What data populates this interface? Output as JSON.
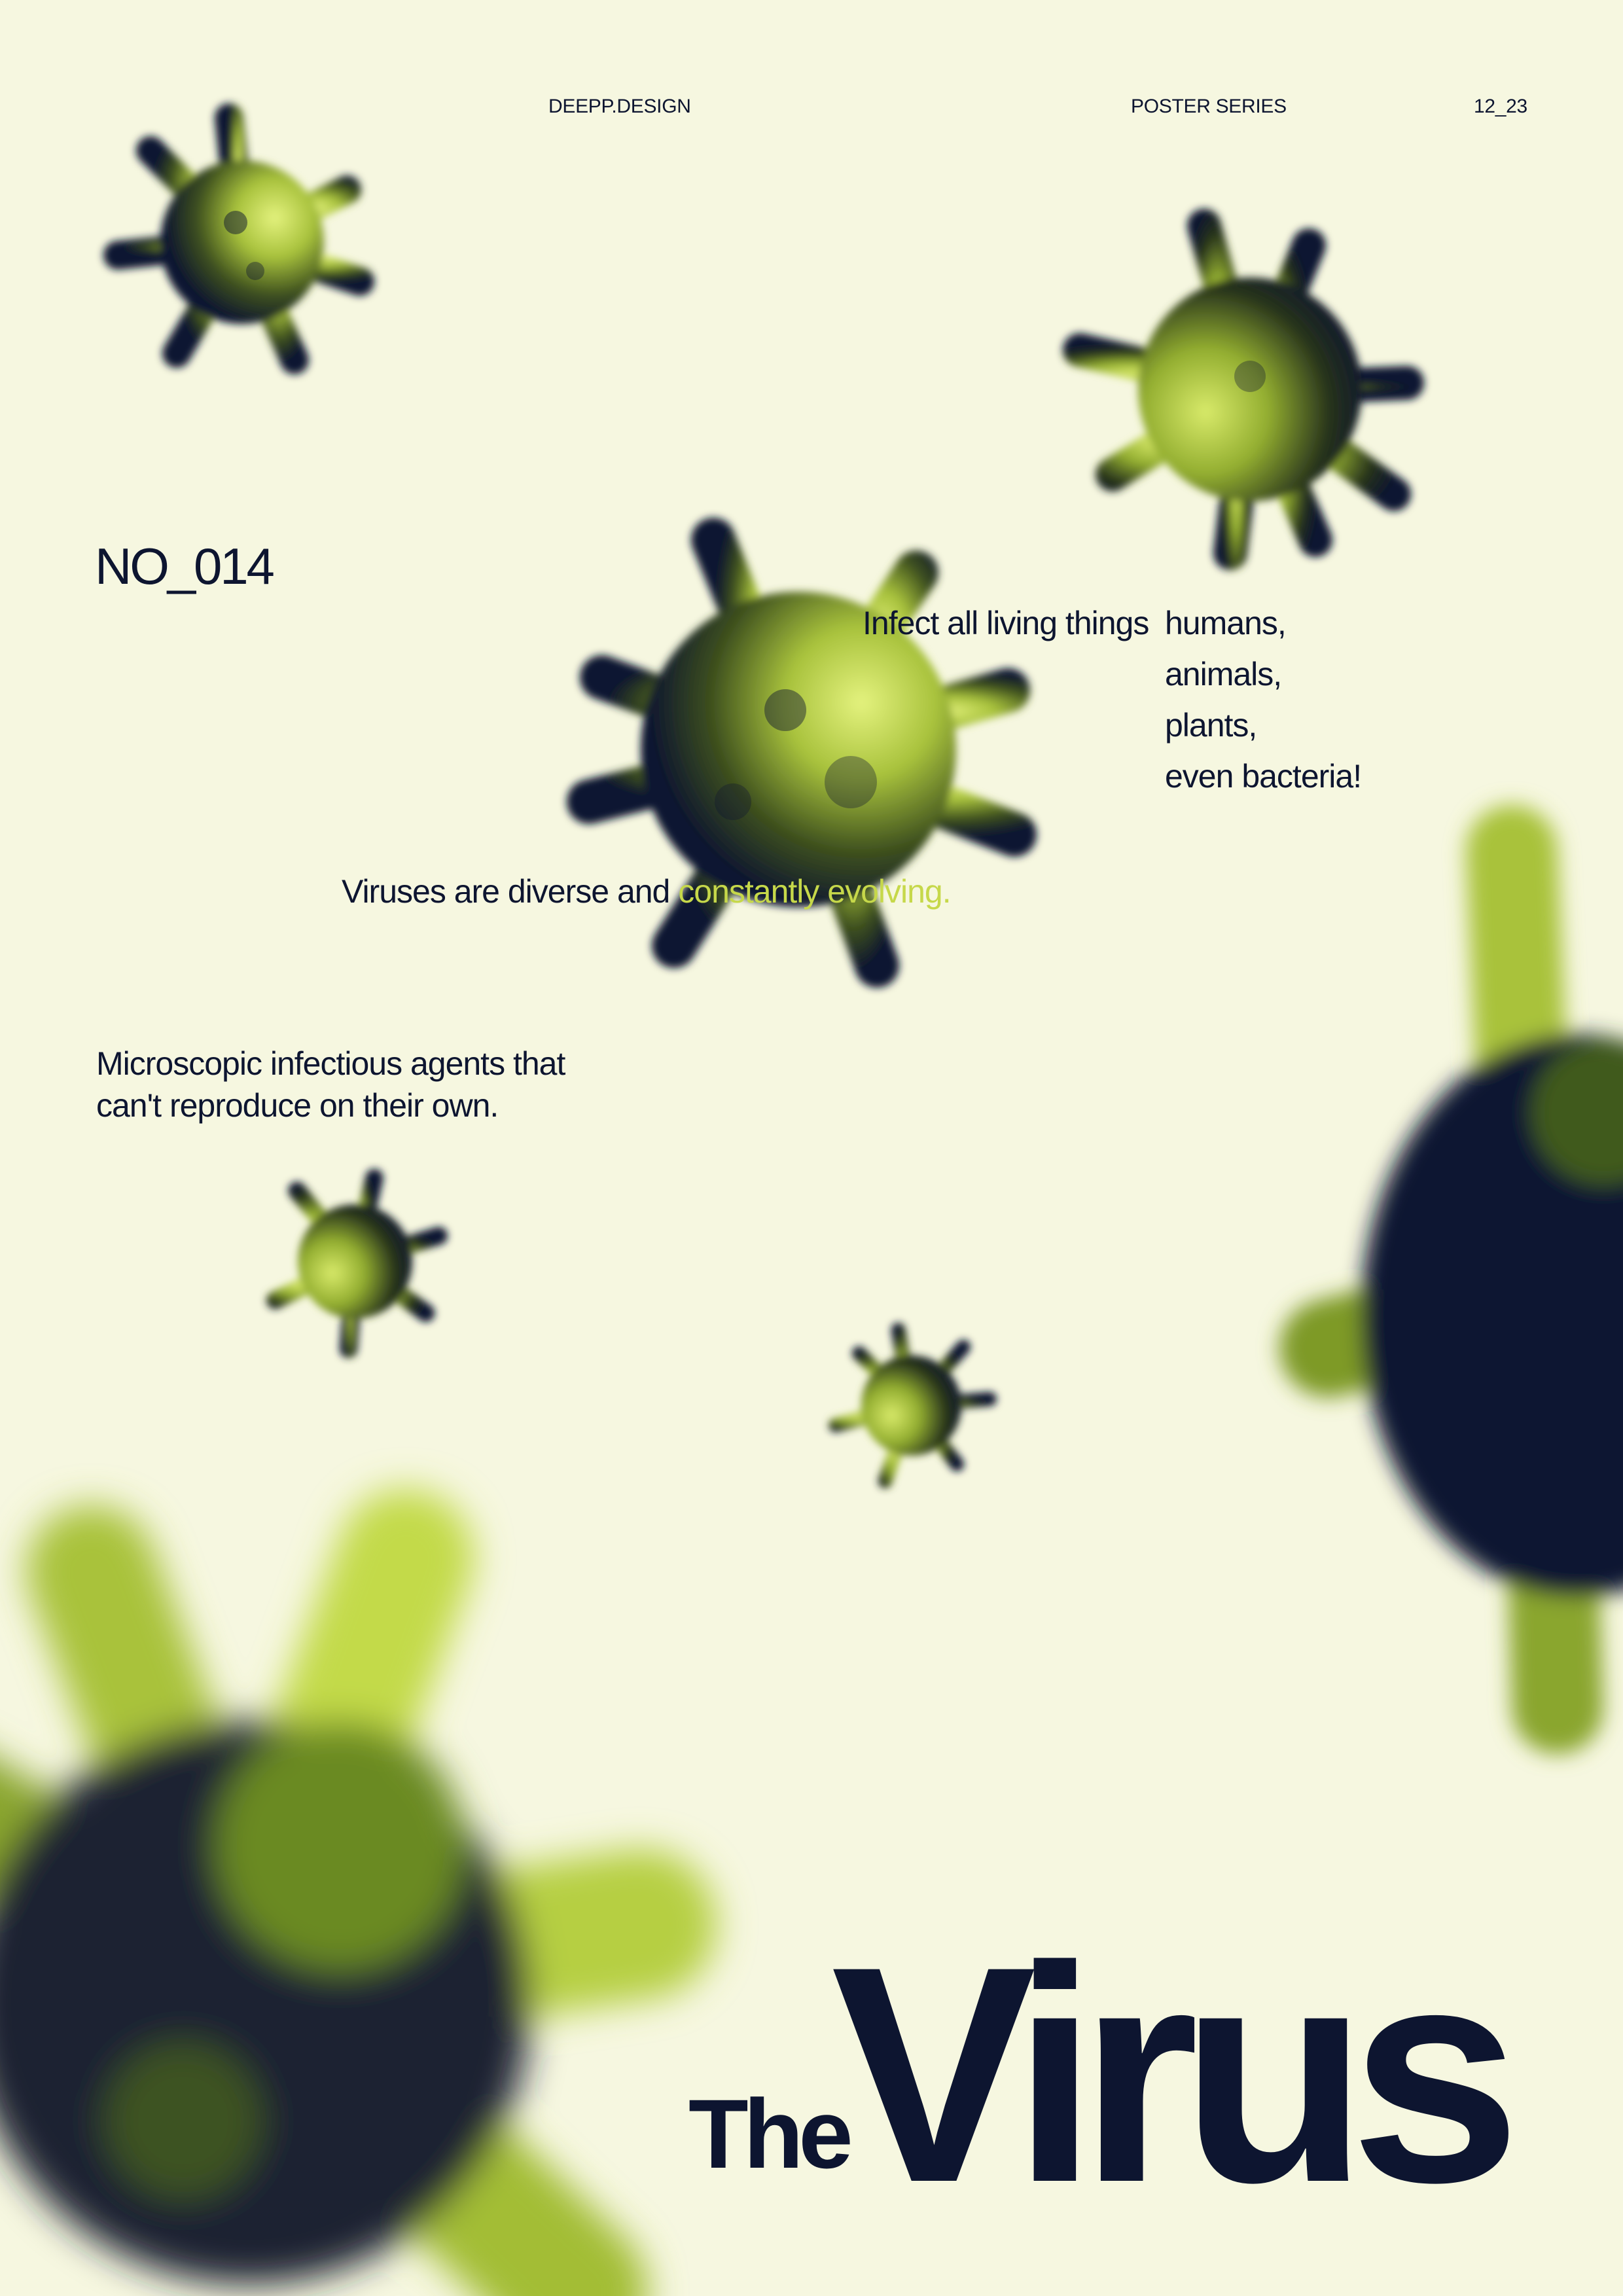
{
  "header": {
    "studio": "DEEPP.DESIGN",
    "series": "POSTER SERIES",
    "date": "12_23"
  },
  "poster": {
    "number": "NO_014",
    "infect_lead": "Infect all living things",
    "infect_list": [
      "humans,",
      "animals,",
      "plants,",
      "even bacteria!"
    ],
    "diverse_plain": "Viruses are diverse and ",
    "diverse_accent": "constantly evolving.",
    "definition_lines": [
      "Microscopic infectious agents that",
      "can't reproduce on their own."
    ],
    "title_small": "The",
    "title_large": "Virus"
  },
  "colors": {
    "background": "#f6f7e0",
    "ink": "#0d1530",
    "accent": "#c6d84a",
    "virus_light": "#d4e86a",
    "virus_mid": "#7e9a26",
    "virus_dark": "#0d1530"
  }
}
